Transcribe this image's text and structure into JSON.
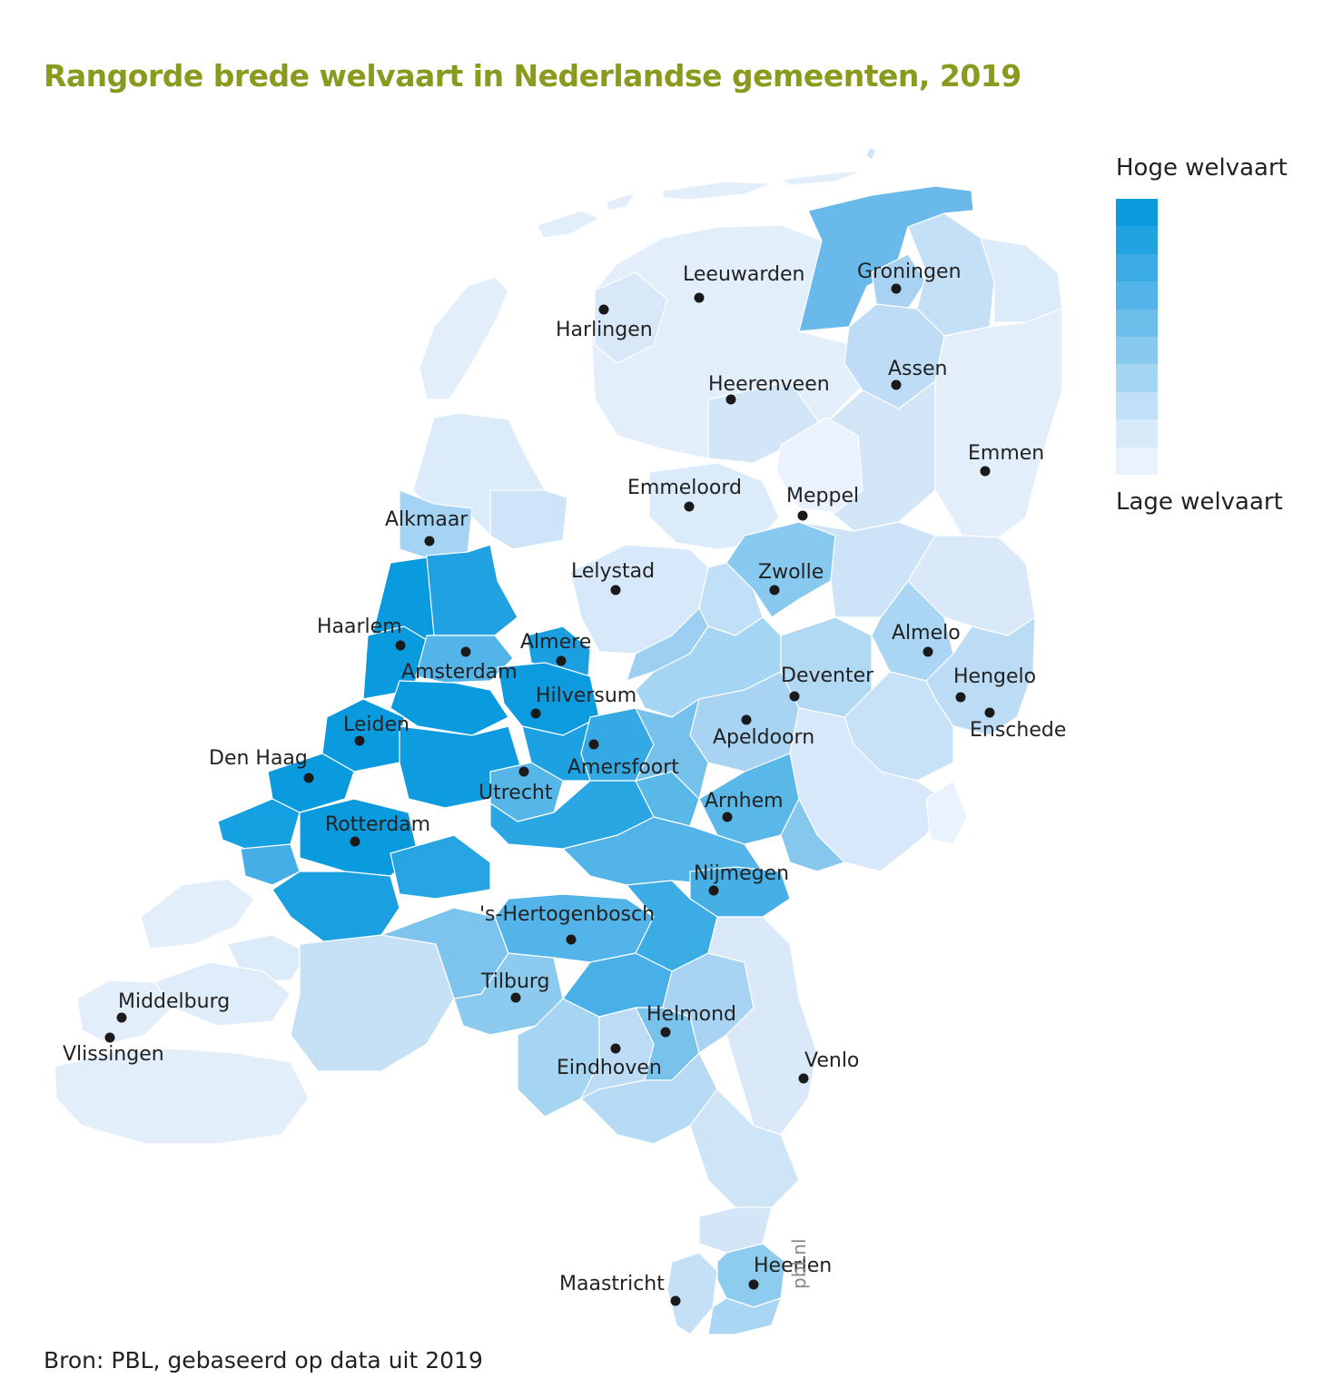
{
  "title": "Rangorde brede welvaart in Nederlandse gemeenten, 2019",
  "legend": {
    "high_label": "Hoge welvaart",
    "low_label": "Lage welvaart",
    "scale_colors": [
      "#0a9ade",
      "#21a3e2",
      "#3aabe5",
      "#52b4e8",
      "#6cbeeb",
      "#88c9ef",
      "#a4d5f2",
      "#bfe0f6",
      "#d6eafa",
      "#e9f3fd"
    ]
  },
  "cities": [
    {
      "id": "leeuwarden",
      "name": "Leeuwarden"
    },
    {
      "id": "groningen",
      "name": "Groningen"
    },
    {
      "id": "harlingen",
      "name": "Harlingen"
    },
    {
      "id": "assen",
      "name": "Assen"
    },
    {
      "id": "heerenveen",
      "name": "Heerenveen"
    },
    {
      "id": "emmen",
      "name": "Emmen"
    },
    {
      "id": "emmeloord",
      "name": "Emmeloord"
    },
    {
      "id": "meppel",
      "name": "Meppel"
    },
    {
      "id": "alkmaar",
      "name": "Alkmaar"
    },
    {
      "id": "lelystad",
      "name": "Lelystad"
    },
    {
      "id": "zwolle",
      "name": "Zwolle"
    },
    {
      "id": "haarlem",
      "name": "Haarlem"
    },
    {
      "id": "almere",
      "name": "Almere"
    },
    {
      "id": "almelo",
      "name": "Almelo"
    },
    {
      "id": "amsterdam",
      "name": "Amsterdam"
    },
    {
      "id": "deventer",
      "name": "Deventer"
    },
    {
      "id": "hengelo",
      "name": "Hengelo"
    },
    {
      "id": "hilversum",
      "name": "Hilversum"
    },
    {
      "id": "enschede",
      "name": "Enschede"
    },
    {
      "id": "leiden",
      "name": "Leiden"
    },
    {
      "id": "apeldoorn",
      "name": "Apeldoorn"
    },
    {
      "id": "denhaag",
      "name": "Den Haag"
    },
    {
      "id": "amersfoort",
      "name": "Amersfoort"
    },
    {
      "id": "utrecht",
      "name": "Utrecht"
    },
    {
      "id": "arnhem",
      "name": "Arnhem"
    },
    {
      "id": "rotterdam",
      "name": "Rotterdam"
    },
    {
      "id": "nijmegen",
      "name": "Nijmegen"
    },
    {
      "id": "shertogenbosch",
      "name": "'s-Hertogenbosch"
    },
    {
      "id": "tilburg",
      "name": "Tilburg"
    },
    {
      "id": "helmond",
      "name": "Helmond"
    },
    {
      "id": "middelburg",
      "name": "Middelburg"
    },
    {
      "id": "eindhoven",
      "name": "Eindhoven"
    },
    {
      "id": "venlo",
      "name": "Venlo"
    },
    {
      "id": "vlissingen",
      "name": "Vlissingen"
    },
    {
      "id": "heerlen",
      "name": "Heerlen"
    },
    {
      "id": "maastricht",
      "name": "Maastricht"
    }
  ],
  "source": "Bron: PBL, gebaseerd op data uit 2019",
  "watermark": "pbl.nl"
}
